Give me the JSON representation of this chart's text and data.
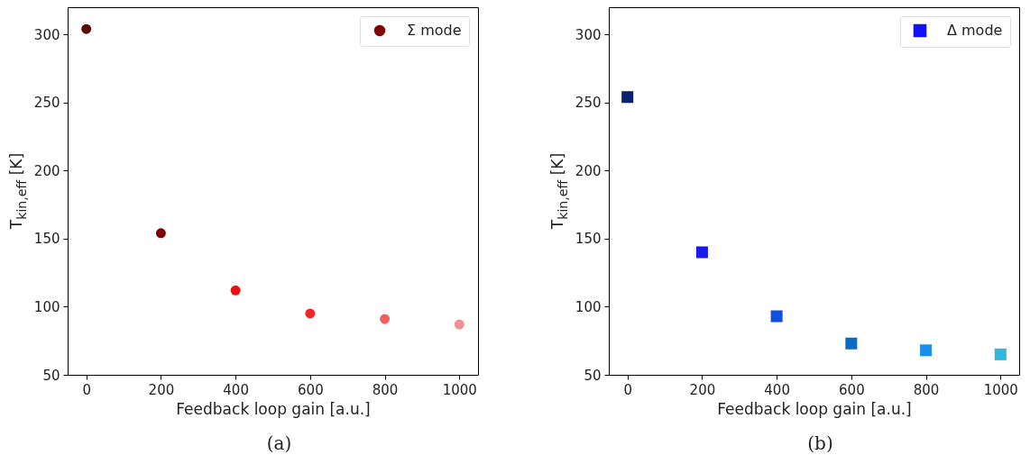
{
  "chart_data": [
    {
      "type": "scatter",
      "xlabel": "Feedback loop gain [a.u.]",
      "ylabel": "T$_{kin,eff}$ [K]",
      "annotations": [
        "(a)"
      ],
      "x": [
        0,
        200,
        400,
        600,
        800,
        1000
      ],
      "xlim": [
        -50,
        1050
      ],
      "xticks": [
        0,
        200,
        400,
        600,
        800,
        1000
      ],
      "ylim": [
        50,
        320
      ],
      "yticks": [
        50,
        100,
        150,
        200,
        250,
        300
      ],
      "grid": false,
      "legend": "top right",
      "marker": "circle",
      "series": [
        {
          "name": "Σ mode",
          "color": "#7f0000",
          "colors": [
            "#5a0a0a",
            "#7f0000",
            "#e81010",
            "#f52525",
            "#f06060",
            "#f29090"
          ],
          "values": [
            304,
            154,
            112,
            95,
            91,
            87
          ]
        }
      ]
    },
    {
      "type": "scatter",
      "xlabel": "Feedback loop gain [a.u.]",
      "ylabel": "T$_{kin,eff}$ [K]",
      "annotations": [
        "(b)"
      ],
      "x": [
        0,
        200,
        400,
        600,
        800,
        1000
      ],
      "xlim": [
        -50,
        1050
      ],
      "xticks": [
        0,
        200,
        400,
        600,
        800,
        1000
      ],
      "ylim": [
        50,
        320
      ],
      "yticks": [
        50,
        100,
        150,
        200,
        250,
        300
      ],
      "grid": false,
      "legend": "top right",
      "marker": "square",
      "series": [
        {
          "name": "Δ mode",
          "color": "#1010ff",
          "colors": [
            "#0a2270",
            "#1a1af0",
            "#1050e0",
            "#0a6cc0",
            "#1e8ee6",
            "#30b8d8"
          ],
          "values": [
            254,
            140,
            93,
            73,
            68,
            65
          ]
        }
      ]
    }
  ]
}
